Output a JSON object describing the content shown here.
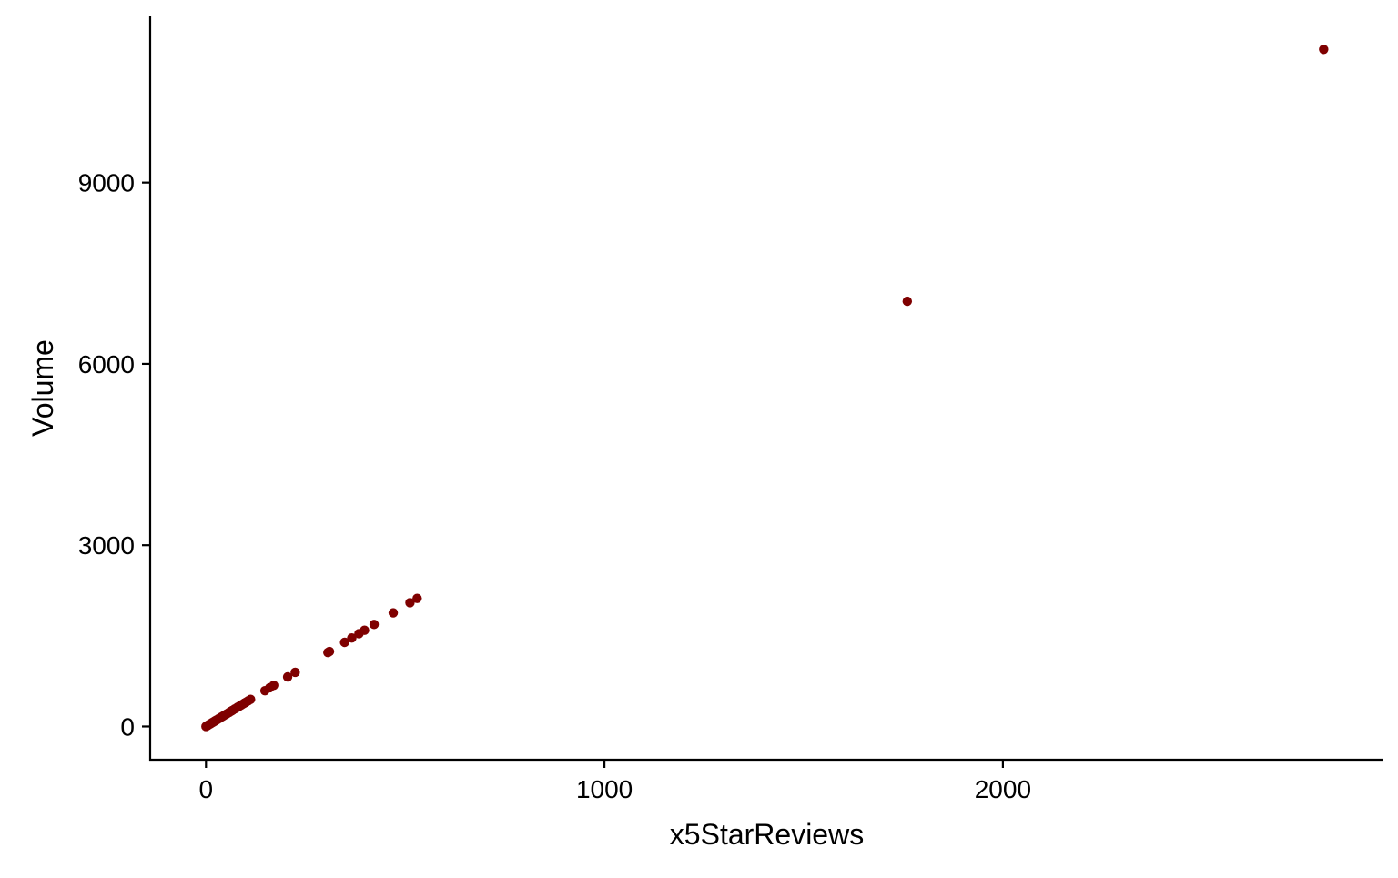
{
  "chart_data": {
    "type": "scatter",
    "title": "",
    "xlabel": "x5StarReviews",
    "ylabel": "Volume",
    "xlim": [
      -140,
      2955
    ],
    "ylim": [
      -550,
      11750
    ],
    "x_ticks": [
      0,
      1000,
      2000
    ],
    "x_tick_labels": [
      "0",
      "1000",
      "2000"
    ],
    "y_ticks": [
      0,
      3000,
      6000,
      9000
    ],
    "y_tick_labels": [
      "0",
      "3000",
      "6000",
      "9000"
    ],
    "grid": false,
    "legend": "none",
    "point_color": "#7f0000",
    "series": [
      {
        "x": [
          0,
          2,
          4,
          6,
          8,
          10,
          12,
          14,
          16,
          18,
          20,
          22,
          24,
          26,
          30,
          34,
          38,
          42,
          46,
          52,
          58,
          62,
          66,
          72,
          78,
          82,
          86,
          90,
          96,
          100,
          106,
          112,
          148,
          160,
          170,
          205,
          224,
          306,
          310,
          348,
          366,
          384,
          398,
          422,
          470,
          512,
          530,
          1760,
          2805
        ],
        "y": [
          0,
          8,
          16,
          24,
          32,
          40,
          48,
          56,
          64,
          72,
          80,
          88,
          96,
          104,
          120,
          136,
          152,
          168,
          184,
          208,
          232,
          248,
          264,
          288,
          312,
          328,
          344,
          360,
          384,
          400,
          424,
          448,
          592,
          640,
          680,
          820,
          896,
          1224,
          1240,
          1392,
          1464,
          1536,
          1592,
          1688,
          1880,
          2048,
          2120,
          7036,
          11204
        ]
      }
    ]
  }
}
